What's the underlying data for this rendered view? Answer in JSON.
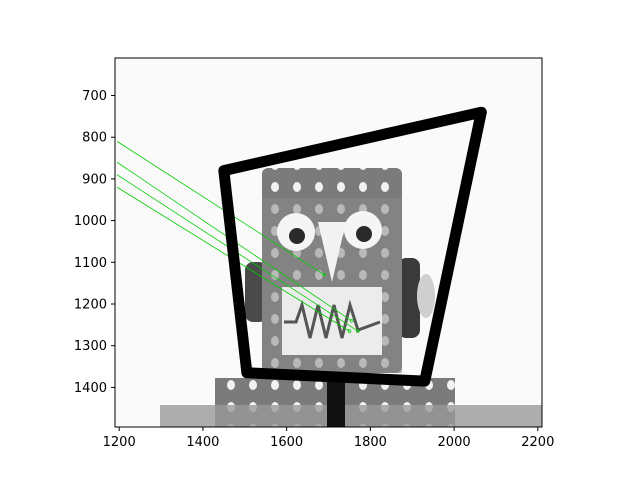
{
  "chart_data": {
    "type": "image",
    "title": "",
    "xlabel": "",
    "ylabel": "",
    "xlim": [
      1190,
      2210
    ],
    "ylim": [
      1495,
      610
    ],
    "xticks": [
      1200,
      1400,
      1600,
      1800,
      2000,
      2200
    ],
    "yticks": [
      700,
      800,
      900,
      1000,
      1100,
      1200,
      1300,
      1400
    ],
    "grid": false,
    "image": {
      "content": "grayscale photograph of a toy robot head made of perforated metal plates",
      "colormap": "gray"
    },
    "quadrilateral": {
      "color": "#000000",
      "points": [
        [
          1450,
          880
        ],
        [
          2065,
          740
        ],
        [
          1930,
          1385
        ],
        [
          1505,
          1365
        ]
      ]
    },
    "match_lines": {
      "color": "#00cc00",
      "segments": [
        [
          [
            1195,
            810
          ],
          [
            1690,
            1130
          ]
        ],
        [
          [
            1195,
            860
          ],
          [
            1755,
            1240
          ]
        ],
        [
          [
            1195,
            890
          ],
          [
            1770,
            1265
          ]
        ],
        [
          [
            1195,
            920
          ],
          [
            1750,
            1265
          ]
        ]
      ]
    }
  }
}
